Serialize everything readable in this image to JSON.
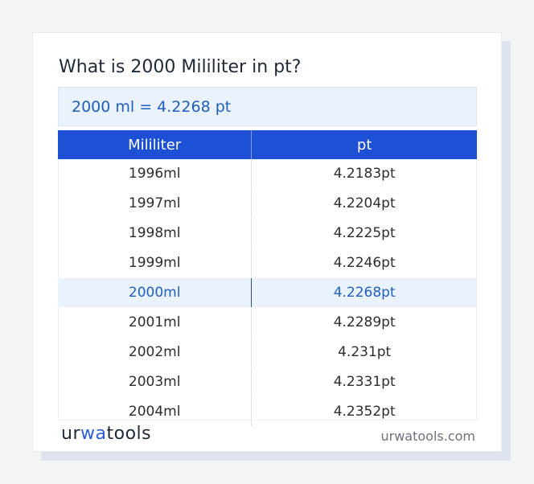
{
  "title": "What is 2000 Mililiter in pt?",
  "answer": "2000 ml = 4.2268 pt",
  "table": {
    "headers": [
      "Mililiter",
      "pt"
    ],
    "rows": [
      [
        "1996ml",
        "4.2183pt"
      ],
      [
        "1997ml",
        "4.2204pt"
      ],
      [
        "1998ml",
        "4.2225pt"
      ],
      [
        "1999ml",
        "4.2246pt"
      ],
      [
        "2000ml",
        "4.2268pt"
      ],
      [
        "2001ml",
        "4.2289pt"
      ],
      [
        "2002ml",
        "4.231pt"
      ],
      [
        "2003ml",
        "4.2331pt"
      ],
      [
        "2004ml",
        "4.2352pt"
      ]
    ],
    "highlighted_row": 4
  },
  "footer": {
    "logo": {
      "part1": "ur",
      "part2": "wa",
      "part3": "tools"
    },
    "site": "urwatools.com"
  },
  "colors": {
    "header_bg": "#1e50d6",
    "highlight_bg": "#eaf3fd",
    "highlight_text": "#1f5fbf",
    "brand": "#2e5bd8"
  }
}
